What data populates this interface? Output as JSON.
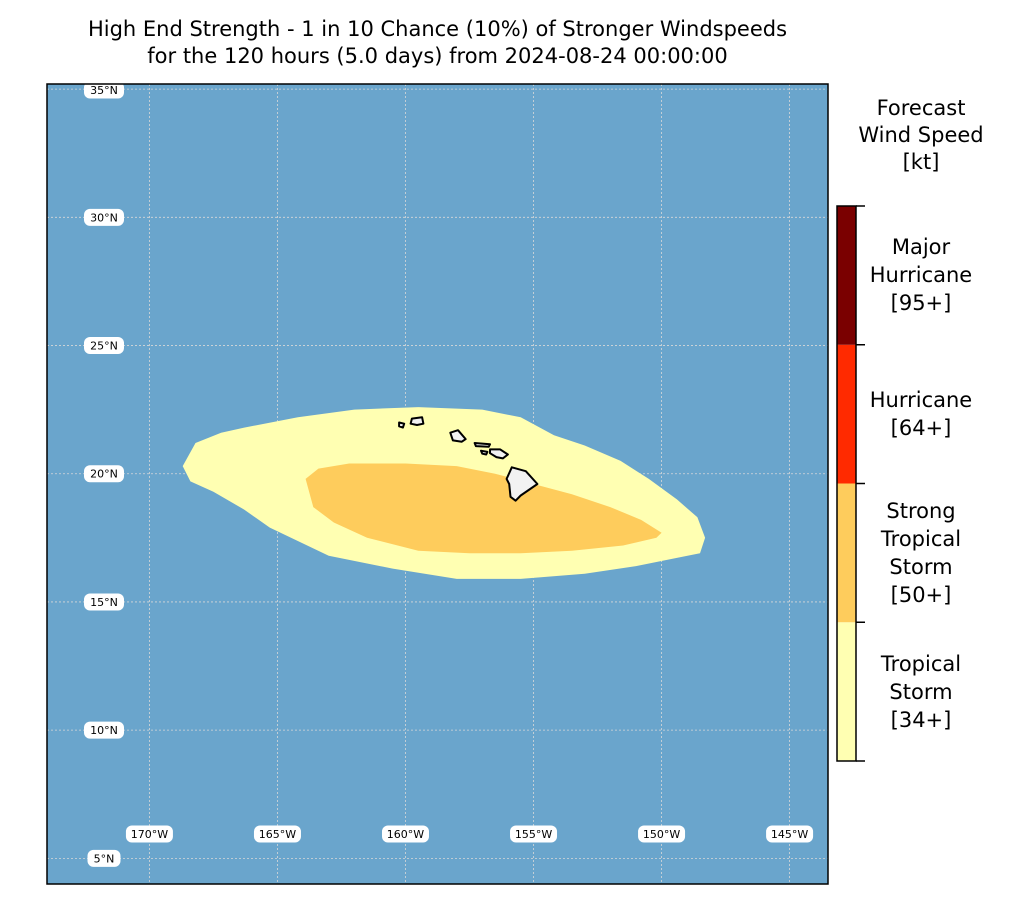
{
  "title": {
    "line1": "High End Strength - 1 in 10 Chance (10%) of Stronger Windspeeds",
    "line2": "for the 120 hours (5.0 days) from 2024-08-24 00:00:00"
  },
  "map": {
    "lon_range": [
      -174,
      -143.5
    ],
    "lat_range": [
      4,
      35.2
    ],
    "lon_ticks": [
      {
        "lon": -170,
        "label": "170°W"
      },
      {
        "lon": -165,
        "label": "165°W"
      },
      {
        "lon": -160,
        "label": "160°W"
      },
      {
        "lon": -155,
        "label": "155°W"
      },
      {
        "lon": -150,
        "label": "150°W"
      },
      {
        "lon": -145,
        "label": "145°W"
      }
    ],
    "lat_ticks": [
      {
        "lat": 35,
        "label": "35°N"
      },
      {
        "lat": 30,
        "label": "30°N"
      },
      {
        "lat": 25,
        "label": "25°N"
      },
      {
        "lat": 20,
        "label": "20°N"
      },
      {
        "lat": 15,
        "label": "15°N"
      },
      {
        "lat": 10,
        "label": "10°N"
      },
      {
        "lat": 5,
        "label": "5°N"
      }
    ],
    "colors": {
      "ocean": "#6aa5cc",
      "land": "#f2f2f2",
      "grid": "#d8d8d8"
    },
    "swaths": [
      {
        "category": "Tropical Storm",
        "color": "#ffffb2",
        "outline_lonlat": [
          [
            -168.7,
            20.3
          ],
          [
            -168.2,
            21.2
          ],
          [
            -167.2,
            21.6
          ],
          [
            -166.3,
            21.8
          ],
          [
            -164.2,
            22.2
          ],
          [
            -162.0,
            22.5
          ],
          [
            -159.5,
            22.6
          ],
          [
            -157.0,
            22.5
          ],
          [
            -155.5,
            22.2
          ],
          [
            -154.2,
            21.5
          ],
          [
            -153.0,
            21.1
          ],
          [
            -151.6,
            20.5
          ],
          [
            -150.5,
            19.8
          ],
          [
            -149.4,
            19.0
          ],
          [
            -148.6,
            18.3
          ],
          [
            -148.3,
            17.5
          ],
          [
            -148.5,
            16.9
          ],
          [
            -149.5,
            16.7
          ],
          [
            -151.0,
            16.4
          ],
          [
            -153.0,
            16.1
          ],
          [
            -155.5,
            15.9
          ],
          [
            -158.0,
            15.9
          ],
          [
            -160.5,
            16.3
          ],
          [
            -163.0,
            16.8
          ],
          [
            -165.3,
            17.9
          ],
          [
            -166.3,
            18.6
          ],
          [
            -167.5,
            19.3
          ],
          [
            -168.4,
            19.7
          ],
          [
            -168.7,
            20.3
          ]
        ]
      },
      {
        "category": "Strong Tropical Storm",
        "color": "#fecc5c",
        "outline_lonlat": [
          [
            -163.9,
            19.8
          ],
          [
            -163.4,
            20.2
          ],
          [
            -162.2,
            20.4
          ],
          [
            -160.0,
            20.4
          ],
          [
            -158.0,
            20.3
          ],
          [
            -156.5,
            20.0
          ],
          [
            -155.0,
            19.6
          ],
          [
            -153.5,
            19.2
          ],
          [
            -152.0,
            18.7
          ],
          [
            -150.8,
            18.2
          ],
          [
            -150.0,
            17.7
          ],
          [
            -150.2,
            17.5
          ],
          [
            -151.5,
            17.2
          ],
          [
            -153.5,
            17.0
          ],
          [
            -155.5,
            16.9
          ],
          [
            -157.5,
            16.9
          ],
          [
            -159.5,
            17.0
          ],
          [
            -161.5,
            17.5
          ],
          [
            -162.8,
            18.1
          ],
          [
            -163.6,
            18.7
          ],
          [
            -163.9,
            19.8
          ]
        ]
      }
    ],
    "islands": [
      {
        "name": "Hawaii",
        "outline_lonlat": [
          [
            -155.85,
            20.25
          ],
          [
            -155.3,
            20.1
          ],
          [
            -154.85,
            19.6
          ],
          [
            -155.5,
            19.15
          ],
          [
            -155.7,
            18.95
          ],
          [
            -155.9,
            19.1
          ],
          [
            -155.95,
            19.6
          ],
          [
            -156.05,
            19.8
          ],
          [
            -155.85,
            20.25
          ]
        ]
      },
      {
        "name": "Maui",
        "outline_lonlat": [
          [
            -156.7,
            20.95
          ],
          [
            -156.3,
            20.95
          ],
          [
            -156.0,
            20.75
          ],
          [
            -156.2,
            20.6
          ],
          [
            -156.45,
            20.65
          ],
          [
            -156.7,
            20.8
          ],
          [
            -156.7,
            20.95
          ]
        ]
      },
      {
        "name": "Molokai",
        "outline_lonlat": [
          [
            -157.3,
            21.2
          ],
          [
            -156.7,
            21.15
          ],
          [
            -156.75,
            21.05
          ],
          [
            -157.25,
            21.08
          ],
          [
            -157.3,
            21.2
          ]
        ]
      },
      {
        "name": "Lanai",
        "outline_lonlat": [
          [
            -157.05,
            20.9
          ],
          [
            -156.8,
            20.85
          ],
          [
            -156.85,
            20.75
          ],
          [
            -157.0,
            20.78
          ],
          [
            -157.05,
            20.9
          ]
        ]
      },
      {
        "name": "Oahu",
        "outline_lonlat": [
          [
            -158.25,
            21.6
          ],
          [
            -157.95,
            21.7
          ],
          [
            -157.65,
            21.35
          ],
          [
            -157.8,
            21.25
          ],
          [
            -158.15,
            21.3
          ],
          [
            -158.25,
            21.6
          ]
        ]
      },
      {
        "name": "Kauai",
        "outline_lonlat": [
          [
            -159.75,
            22.15
          ],
          [
            -159.35,
            22.2
          ],
          [
            -159.3,
            21.95
          ],
          [
            -159.55,
            21.9
          ],
          [
            -159.8,
            21.95
          ],
          [
            -159.75,
            22.15
          ]
        ]
      },
      {
        "name": "Niihau",
        "outline_lonlat": [
          [
            -160.25,
            22.0
          ],
          [
            -160.05,
            21.95
          ],
          [
            -160.1,
            21.8
          ],
          [
            -160.25,
            21.85
          ],
          [
            -160.25,
            22.0
          ]
        ]
      }
    ]
  },
  "legend": {
    "title": [
      "Forecast",
      "Wind Speed",
      "[kt]"
    ],
    "categories": [
      {
        "lines": [
          "Tropical",
          "Storm",
          "[34+]"
        ],
        "color": "#ffffb2",
        "threshold_kt": 34
      },
      {
        "lines": [
          "Strong",
          "Tropical",
          "Storm",
          "[50+]"
        ],
        "color": "#fecc5c",
        "threshold_kt": 50
      },
      {
        "lines": [
          "Hurricane",
          "[64+]"
        ],
        "color": "#ff2a00",
        "threshold_kt": 64
      },
      {
        "lines": [
          "Major",
          "Hurricane",
          "[95+]"
        ],
        "color": "#7a0000",
        "threshold_kt": 95
      }
    ]
  }
}
